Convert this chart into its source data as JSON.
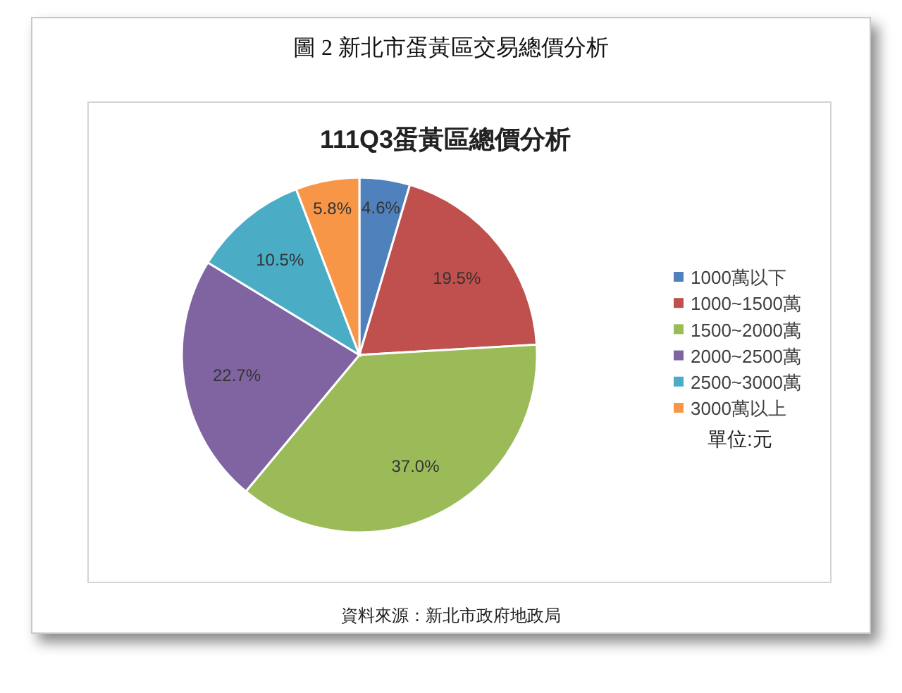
{
  "chart_data": {
    "type": "pie",
    "title": "圖 2 新北市蛋黃區交易總價分析",
    "subtitle": "111Q3蛋黃區總價分析",
    "categories": [
      "1000萬以下",
      "1000~1500萬",
      "1500~2000萬",
      "2000~2500萬",
      "2500~3000萬",
      "3000萬以上"
    ],
    "values": [
      4.6,
      19.5,
      37.0,
      22.7,
      10.5,
      5.8
    ],
    "value_labels": [
      "4.6%",
      "19.5%",
      "37.0%",
      "22.7%",
      "10.5%",
      "5.8%"
    ],
    "colors": [
      "#4f81bd",
      "#c0504d",
      "#9bbb59",
      "#8064a2",
      "#4bacc6",
      "#f79646"
    ],
    "legend": "right",
    "annotations": [
      "單位:元",
      "資料來源：新北市政府地政局"
    ]
  }
}
